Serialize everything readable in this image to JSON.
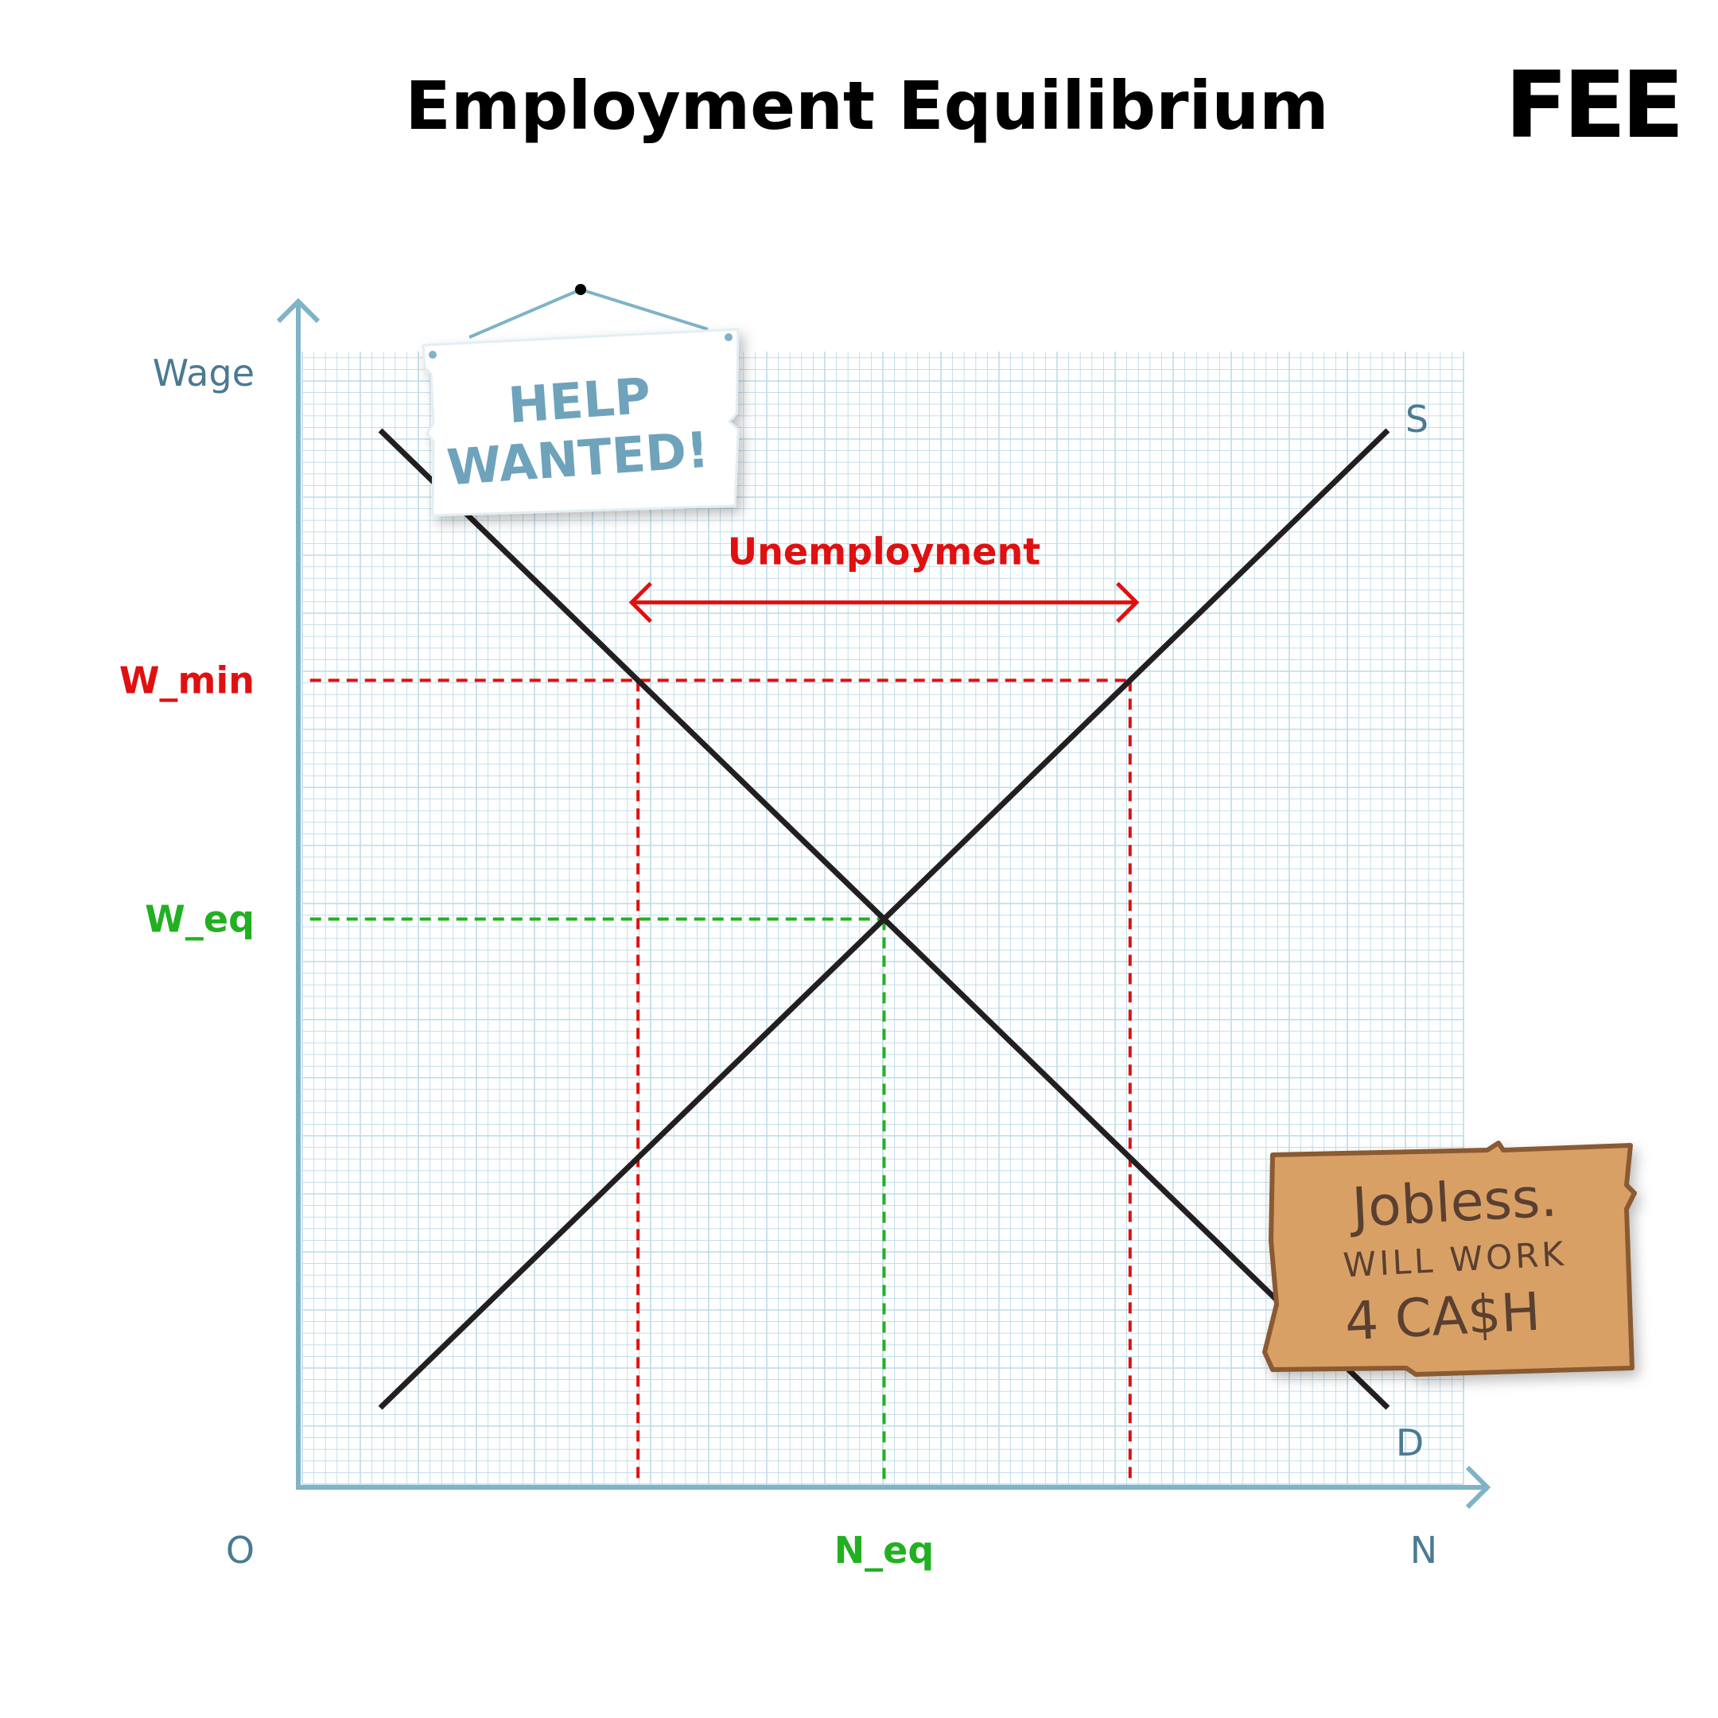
{
  "header": {
    "title": "Employment Equilibrium",
    "logo_text": "FEE"
  },
  "signs": {
    "help_line1": "HELP",
    "help_line2": "WANTED!",
    "jobless_line1": "Jobless.",
    "jobless_line2": "WILL WORK",
    "jobless_line3": "4 CA$H"
  },
  "chart_data": {
    "type": "line",
    "title": "Employment Equilibrium",
    "xlabel": "N",
    "ylabel": "Wage",
    "origin_label": "O",
    "xlim": [
      0,
      10
    ],
    "ylim": [
      0,
      10
    ],
    "grid": true,
    "series": [
      {
        "name": "S",
        "points": [
          [
            0.7,
            0.7
          ],
          [
            9.3,
            9.3
          ]
        ]
      },
      {
        "name": "D",
        "points": [
          [
            0.7,
            9.3
          ],
          [
            9.3,
            0.7
          ]
        ]
      }
    ],
    "levels": {
      "w_min": {
        "label": "W_min",
        "value": 7.1
      },
      "w_eq": {
        "label": "W_eq",
        "value": 5.0
      },
      "n_eq": {
        "label": "N_eq",
        "value": 5.0
      },
      "n_demand": 2.9,
      "n_supply": 7.1
    },
    "annotation": "Unemployment",
    "colors": {
      "curve": "#231f20",
      "axis": "#7fb3c7",
      "grid": "#bcdce8",
      "min_wage": "#e01010",
      "equilibrium": "#22b022"
    }
  }
}
